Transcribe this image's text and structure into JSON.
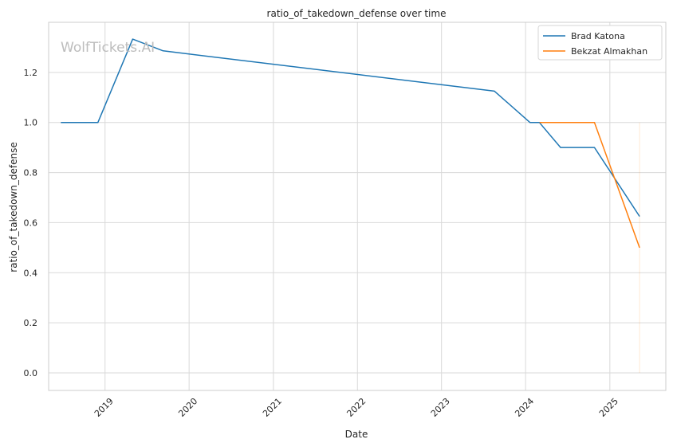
{
  "chart_data": {
    "type": "line",
    "title": "ratio_of_takedown_defense over time",
    "xlabel": "Date",
    "ylabel": "ratio_of_takedown_defense",
    "watermark": "WolfTickets.AI",
    "x_type": "date",
    "xlim": [
      "2018-05-01",
      "2025-09-01"
    ],
    "ylim": [
      -0.07,
      1.4
    ],
    "x_ticks": [
      {
        "date": "2019-01-01",
        "label": "2019"
      },
      {
        "date": "2020-01-01",
        "label": "2020"
      },
      {
        "date": "2021-01-01",
        "label": "2021"
      },
      {
        "date": "2022-01-01",
        "label": "2022"
      },
      {
        "date": "2023-01-01",
        "label": "2023"
      },
      {
        "date": "2024-01-01",
        "label": "2024"
      },
      {
        "date": "2025-01-01",
        "label": "2025"
      }
    ],
    "y_ticks": [
      {
        "value": 0.0,
        "label": "0.0"
      },
      {
        "value": 0.2,
        "label": "0.2"
      },
      {
        "value": 0.4,
        "label": "0.4"
      },
      {
        "value": 0.6,
        "label": "0.6"
      },
      {
        "value": 0.8,
        "label": "0.8"
      },
      {
        "value": 1.0,
        "label": "1.0"
      },
      {
        "value": 1.2,
        "label": "1.2"
      }
    ],
    "grid": true,
    "legend_position": "top-right",
    "series": [
      {
        "name": "Brad Katona",
        "color": "#1f77b4",
        "points": [
          {
            "x": "2018-06-23",
            "y": 1.0
          },
          {
            "x": "2018-12-01",
            "y": 1.0
          },
          {
            "x": "2019-05-01",
            "y": 1.333
          },
          {
            "x": "2019-09-10",
            "y": 1.286
          },
          {
            "x": "2023-08-19",
            "y": 1.125
          },
          {
            "x": "2024-01-20",
            "y": 1.0
          },
          {
            "x": "2024-03-01",
            "y": 1.0
          },
          {
            "x": "2024-06-01",
            "y": 0.9
          },
          {
            "x": "2024-10-26",
            "y": 0.9
          },
          {
            "x": "2025-05-10",
            "y": 0.625
          }
        ]
      },
      {
        "name": "Bekzat Almakhan",
        "color": "#ff7f0e",
        "points": [
          {
            "x": "2024-03-02",
            "y": 1.0
          },
          {
            "x": "2024-10-26",
            "y": 1.0
          },
          {
            "x": "2025-05-10",
            "y": 0.5
          }
        ]
      }
    ],
    "annotations": [
      {
        "type": "faint-vertical-line",
        "x": "2025-05-10",
        "y_range": [
          0.0,
          1.0
        ],
        "color": "#ff7f0e"
      }
    ]
  }
}
